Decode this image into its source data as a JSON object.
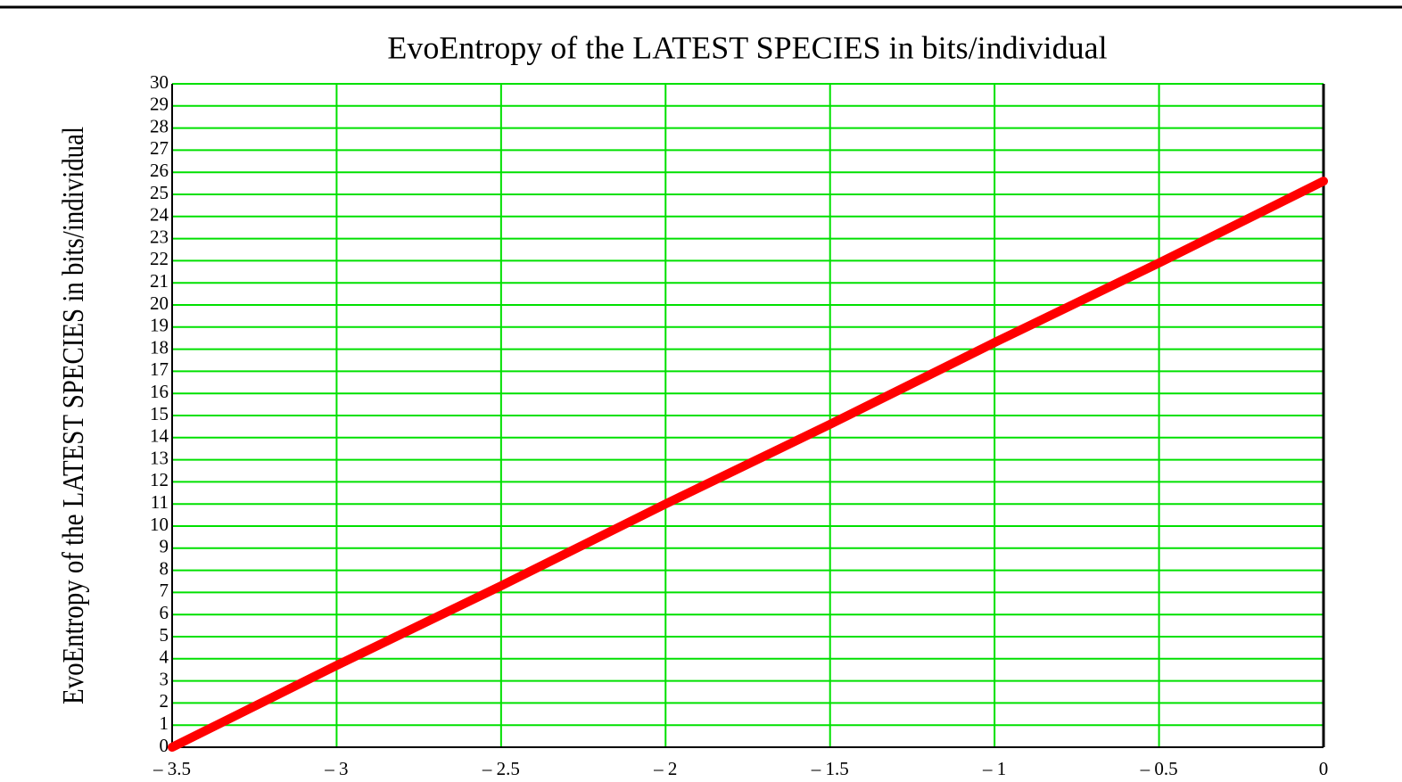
{
  "chart_data": {
    "type": "line",
    "title": "EvoEntropy of the LATEST SPECIES in bits/individual",
    "y_label": "EvoEntropy of the LATEST SPECIES in bits/individual",
    "x": [
      -3.5,
      -3,
      -2.5,
      -2,
      -1.5,
      -1,
      -0.5,
      0
    ],
    "series": [
      {
        "color": "#ff0000",
        "values": [
          0,
          3.7,
          7.3,
          11.0,
          14.6,
          18.3,
          21.9,
          25.6
        ]
      }
    ],
    "xlim": [
      -3.5,
      0
    ],
    "xticks": [
      {
        "value": -3.5,
        "label": "– 3.5"
      },
      {
        "value": -3,
        "label": "– 3"
      },
      {
        "value": -2.5,
        "label": "– 2.5"
      },
      {
        "value": -2,
        "label": "– 2"
      },
      {
        "value": -1.5,
        "label": "– 1.5"
      },
      {
        "value": -1,
        "label": "– 1"
      },
      {
        "value": -0.5,
        "label": "– 0.5"
      },
      0
    ],
    "ylim": [
      0,
      30
    ],
    "yticks": [
      0,
      1,
      2,
      3,
      4,
      5,
      6,
      7,
      8,
      9,
      10,
      11,
      12,
      13,
      14,
      15,
      16,
      17,
      18,
      19,
      20,
      21,
      22,
      23,
      24,
      25,
      26,
      27,
      28,
      29,
      30
    ],
    "grid": true,
    "grid_color": "#00e000"
  }
}
